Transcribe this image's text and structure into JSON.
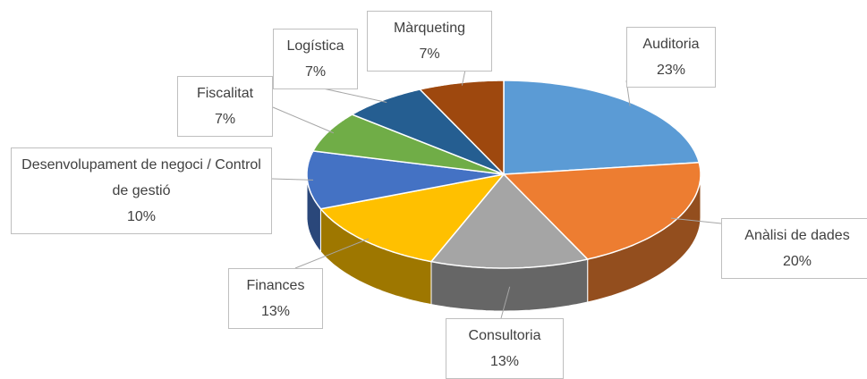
{
  "chart_data": {
    "type": "pie",
    "categories": [
      "Auditoria",
      "Anàlisi de dades",
      "Consultoria",
      "Finances",
      "Desenvolupament de negoci / Control de gestió",
      "Fiscalitat",
      "Logística",
      "Màrqueting"
    ],
    "values": [
      23,
      20,
      13,
      13,
      10,
      7,
      7,
      7
    ],
    "value_labels": [
      "23%",
      "20%",
      "13%",
      "13%",
      "10%",
      "7%",
      "7%",
      "7%"
    ],
    "colors": [
      "#5b9bd5",
      "#ed7d31",
      "#a5a5a5",
      "#ffc000",
      "#4472c4",
      "#70ad47",
      "#255e91",
      "#9e480e"
    ]
  }
}
